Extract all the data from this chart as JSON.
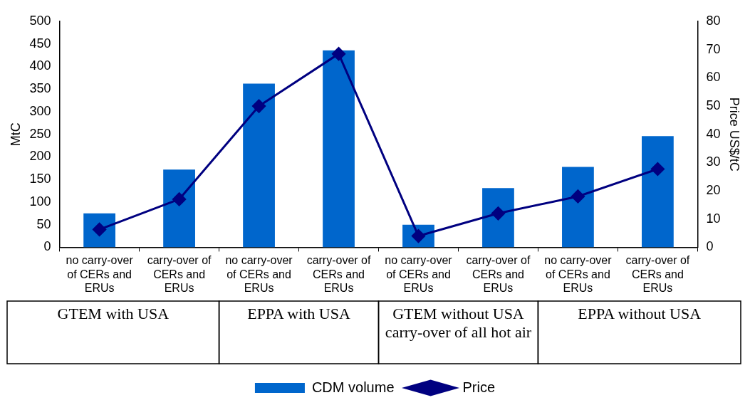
{
  "chart_data": {
    "type": "bar",
    "ylabel": "MtC",
    "y2label": "Price US$/tC",
    "categories": [
      "no carry-over of CERs and ERUs",
      "carry-over of CERs and ERUs",
      "no carry-over of CERs and ERUs",
      "carry-over of CERs and ERUs",
      "no carry-over of CERs and ERUs",
      "carry-over of CERs and ERUs",
      "no carry-over of CERs and ERUs",
      "carry-over of CERs and ERUs"
    ],
    "series": [
      {
        "name": "CDM volume",
        "color": "#0066cc",
        "values": [
          75,
          172,
          362,
          436,
          50,
          131,
          178,
          246
        ]
      },
      {
        "name": "Price",
        "type": "line",
        "axis": "y2",
        "color": "#000080",
        "marker": "diamond",
        "values": [
          6.3,
          17,
          50,
          68.5,
          4,
          12,
          18,
          27.7
        ]
      }
    ],
    "ylim": [
      0,
      500
    ],
    "yticks": [
      0,
      50,
      100,
      150,
      200,
      250,
      300,
      350,
      400,
      450,
      500
    ],
    "y2lim": [
      0,
      80
    ],
    "y2ticks": [
      0,
      10,
      20,
      30,
      40,
      50,
      60,
      70,
      80
    ],
    "annotations": [
      "GTEM with USA",
      "EPPA with USA",
      "GTEM without USA carry-over of  all hot air",
      "EPPA without USA"
    ],
    "grid": false,
    "legend": "bottom"
  }
}
